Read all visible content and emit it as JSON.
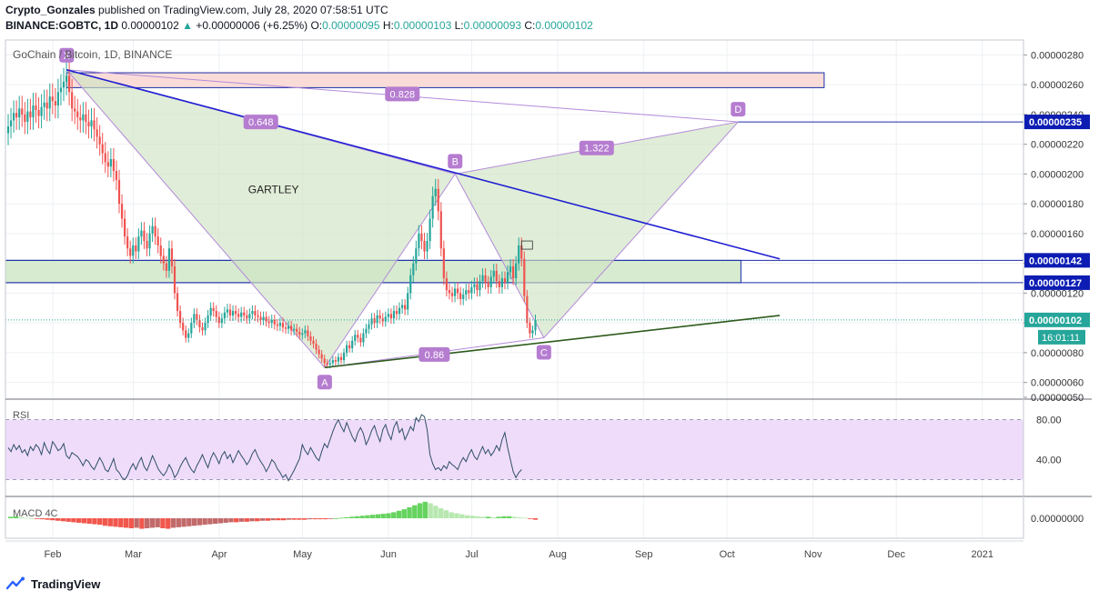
{
  "header": {
    "line1_user": "Crypto_Gonzales",
    "line1_rest": " published on TradingView.com, July 28, 2020 07:58:51 UTC",
    "symbol": "BINANCE:GOBTC, 1D",
    "price": "0.00000102",
    "change": "+0.00000006 (+6.25%)",
    "o_label": "O:",
    "o": "0.00000095",
    "h_label": "H:",
    "h": "0.00000103",
    "l_label": "L:",
    "l": "0.00000093",
    "c_label": "C:",
    "c": "0.00000102"
  },
  "colors": {
    "up": "#26a69a",
    "down": "#ef5350",
    "up_dark": "#2e7d32",
    "pattern_line": "#b38bd9",
    "pattern_fill": "#cfe3c3",
    "label_bg": "#b57cd0",
    "trend_blue": "#1f1fd1",
    "trend_green": "#2e5a1c",
    "sr_box": "#d7ebd0",
    "target_box": "#f9dcd8",
    "rsi_band": "#efdcfb",
    "rsi_line": "#2f4f66",
    "axis_label_bg": "#0d1db3",
    "price_label_bg": "#26a69a"
  },
  "footer": {
    "brand": "TradingView",
    "icon": "tradingview-logo-icon"
  },
  "chart_data": {
    "type": "candlestick",
    "title": "GoChain / Bitcoin, 1D, BINANCE",
    "ylim": [
      5e-07,
      2.9e-06
    ],
    "yticks": [
      "0.00000280",
      "0.00000260",
      "0.00000240",
      "0.00000220",
      "0.00000200",
      "0.00000180",
      "0.00000160",
      "0.00000140",
      "0.00000120",
      "0.00000100",
      "0.00000080",
      "0.00000060",
      "0.00000050"
    ],
    "xticks": [
      "Feb",
      "Mar",
      "Apr",
      "May",
      "Jun",
      "Jul",
      "Aug",
      "Sep",
      "Oct",
      "Nov",
      "Dec",
      "2021"
    ],
    "current_price": "0.00000102",
    "countdown": "16:01:11",
    "price_labels": [
      "0.00000235",
      "0.00000142",
      "0.00000127"
    ],
    "harmonic_pattern": {
      "name": "GARTLEY",
      "points": [
        {
          "label": "X",
          "date": "2020-02-06",
          "price": 2.7e-06
        },
        {
          "label": "A",
          "date": "2020-05-09",
          "price": 7e-07
        },
        {
          "label": "B",
          "date": "2020-06-25",
          "price": 2e-06
        },
        {
          "label": "C",
          "date": "2020-07-27",
          "price": 9e-07
        },
        {
          "label": "D",
          "date": "2020-10-05",
          "price": 2.35e-06
        }
      ],
      "ratios": [
        "0.648",
        "0.828",
        "1.322",
        "0.86"
      ]
    },
    "trendlines": [
      {
        "name": "resistance",
        "from": {
          "date": "2020-02-06",
          "price": 2.7e-06
        },
        "to": {
          "date": "2020-10-20",
          "price": 1.43e-06
        }
      },
      {
        "name": "support",
        "from": {
          "date": "2020-05-09",
          "price": 7e-07
        },
        "to": {
          "date": "2020-10-20",
          "price": 1.05e-06
        }
      }
    ],
    "zones": [
      {
        "name": "target-zone",
        "from": "2020-02-06",
        "to": "2020-11-05",
        "top": 2.68e-06,
        "bottom": 2.58e-06
      },
      {
        "name": "support-zone",
        "from": "2020-01-01",
        "to": "2020-10-06",
        "top": 1.42e-06,
        "bottom": 1.27e-06
      }
    ],
    "candles_close": [
      2.32e-06,
      2.36e-06,
      2.41e-06,
      2.38e-06,
      2.44e-06,
      2.4e-06,
      2.35e-06,
      2.42e-06,
      2.38e-06,
      2.46e-06,
      2.43e-06,
      2.39e-06,
      2.45e-06,
      2.48e-06,
      2.44e-06,
      2.52e-06,
      2.49e-06,
      2.46e-06,
      2.55e-06,
      2.58e-06,
      2.62e-06,
      2.66e-06,
      2.55e-06,
      2.44e-06,
      2.42e-06,
      2.38e-06,
      2.36e-06,
      2.4e-06,
      2.35e-06,
      2.32e-06,
      2.36e-06,
      2.3e-06,
      2.25e-06,
      2.2e-06,
      2.14e-06,
      2.08e-06,
      2.05e-06,
      2.1e-06,
      2.02e-06,
      1.96e-06,
      1.8e-06,
      1.7e-06,
      1.58e-06,
      1.5e-06,
      1.45e-06,
      1.52e-06,
      1.48e-06,
      1.58e-06,
      1.62e-06,
      1.55e-06,
      1.5e-06,
      1.6e-06,
      1.65e-06,
      1.58e-06,
      1.52e-06,
      1.45e-06,
      1.4e-06,
      1.35e-06,
      1.5e-06,
      1.38e-06,
      1.2e-06,
      1.08e-06,
      1e-06,
      9.5e-07,
      9e-07,
      9.3e-07,
      1e-06,
      1.06e-06,
      1.02e-06,
      9.7e-07,
      9.5e-07,
      1e-06,
      1.05e-06,
      1.1e-06,
      1.08e-06,
      1.04e-06,
      1e-06,
      1.03e-06,
      1.07e-06,
      1.09e-06,
      1.05e-06,
      1.08e-06,
      1.06e-06,
      1.04e-06,
      1.07e-06,
      1.05e-06,
      1.03e-06,
      1.06e-06,
      1.08e-06,
      1.05e-06,
      1.04e-06,
      1.02e-06,
      1.04e-06,
      1.01e-06,
      1e-06,
      1.02e-06,
      9.9e-07,
      9.8e-07,
      1e-06,
      9.7e-07,
      9.6e-07,
      9.8e-07,
      9.5e-07,
      9.6e-07,
      9.4e-07,
      9.2e-07,
      9.3e-07,
      9.5e-07,
      9.1e-07,
      8.8e-07,
      8.6e-07,
      8.2e-07,
      7.9e-07,
      7.6e-07,
      7.3e-07,
      7.2e-07,
      7.3e-07,
      7.5e-07,
      7.4e-07,
      7.7e-07,
      7.5e-07,
      8e-07,
      8.5e-07,
      8.3e-07,
      8.8e-07,
      9.2e-07,
      9e-07,
      8.7e-07,
      9.3e-07,
      9.6e-07,
      9.9e-07,
      1.03e-06,
      1e-06,
      1.05e-06,
      1.03e-06,
      1.01e-06,
      1.04e-06,
      1.06e-06,
      1.03e-06,
      1.08e-06,
      1.06e-06,
      1.1e-06,
      1.12e-06,
      1.09e-06,
      1.2e-06,
      1.32e-06,
      1.4e-06,
      1.5e-06,
      1.6e-06,
      1.55e-06,
      1.48e-06,
      1.55e-06,
      1.7e-06,
      1.85e-06,
      1.9e-06,
      1.75e-06,
      1.5e-06,
      1.3e-06,
      1.22e-06,
      1.2e-06,
      1.18e-06,
      1.23e-06,
      1.2e-06,
      1.16e-06,
      1.19e-06,
      1.22e-06,
      1.2e-06,
      1.24e-06,
      1.26e-06,
      1.22e-06,
      1.28e-06,
      1.32e-06,
      1.27e-06,
      1.24e-06,
      1.31e-06,
      1.35e-06,
      1.28e-06,
      1.24e-06,
      1.3e-06,
      1.27e-06,
      1.34e-06,
      1.38e-06,
      1.3e-06,
      1.4e-06,
      1.52e-06,
      1.43e-06,
      1.18e-06,
      1e-06,
      9.3e-07,
      9.5e-07,
      1.02e-06
    ],
    "rsi": {
      "label": "RSI",
      "levels": [
        80,
        20
      ],
      "ticks": [
        "80.00",
        "40.00"
      ],
      "values": [
        52,
        48,
        55,
        50,
        54,
        47,
        50,
        44,
        53,
        49,
        55,
        52,
        45,
        57,
        50,
        46,
        58,
        54,
        49,
        51,
        56,
        44,
        41,
        47,
        45,
        43,
        39,
        34,
        40,
        38,
        33,
        30,
        36,
        42,
        37,
        30,
        28,
        34,
        41,
        30,
        27,
        22,
        20,
        24,
        31,
        36,
        30,
        37,
        42,
        33,
        29,
        36,
        44,
        38,
        31,
        27,
        24,
        28,
        35,
        30,
        22,
        26,
        33,
        38,
        42,
        35,
        30,
        27,
        34,
        39,
        45,
        38,
        32,
        41,
        47,
        42,
        36,
        44,
        48,
        41,
        45,
        37,
        43,
        49,
        44,
        40,
        35,
        39,
        46,
        50,
        43,
        38,
        34,
        28,
        33,
        40,
        37,
        31,
        27,
        22,
        25,
        19,
        24,
        29,
        35,
        41,
        55,
        49,
        45,
        52,
        47,
        42,
        39,
        48,
        56,
        52,
        60,
        68,
        75,
        80,
        73,
        68,
        77,
        70,
        63,
        58,
        67,
        72,
        66,
        55,
        61,
        69,
        74,
        65,
        58,
        70,
        75,
        66,
        60,
        72,
        78,
        67,
        71,
        60,
        66,
        73,
        69,
        82,
        78,
        85,
        83,
        70,
        45,
        36,
        30,
        32,
        29,
        34,
        31,
        38,
        35,
        33,
        30,
        37,
        42,
        38,
        45,
        50,
        43,
        40,
        47,
        53,
        46,
        50,
        44,
        48,
        54,
        49,
        60,
        67,
        52,
        40,
        28,
        22,
        27,
        30
      ],
      "last": 30
    },
    "macd": {
      "label": "MACD 4C",
      "ticks": [
        "0.00000000"
      ],
      "histogram": [
        0.3,
        0.4,
        0.2,
        0.1,
        0.0,
        -0.1,
        -0.2,
        -0.3,
        -0.4,
        -0.5,
        -0.6,
        -0.7,
        -0.8,
        -0.9,
        -1.0,
        -1.1,
        -1.2,
        -1.3,
        -1.5,
        -1.6,
        -1.7,
        -1.8,
        -1.9,
        -2.0,
        -1.9,
        -2.1,
        -2.0,
        -1.9,
        -1.8,
        -2.0,
        -2.1,
        -1.9,
        -1.8,
        -1.7,
        -1.6,
        -1.5,
        -1.4,
        -1.3,
        -1.2,
        -1.1,
        -1.0,
        -0.9,
        -0.8,
        -0.8,
        -0.7,
        -0.7,
        -0.6,
        -0.6,
        -0.5,
        -0.5,
        -0.4,
        -0.4,
        -0.4,
        -0.3,
        -0.3,
        -0.3,
        -0.3,
        -0.2,
        -0.2,
        -0.2,
        -0.2,
        -0.1,
        0.0,
        0.1,
        0.2,
        0.3,
        0.4,
        0.5,
        0.6,
        0.7,
        0.8,
        0.9,
        1.0,
        1.2,
        1.5,
        1.8,
        2.2,
        2.6,
        3.0,
        3.3,
        3.0,
        2.5,
        2.0,
        1.6,
        1.2,
        1.0,
        0.8,
        0.6,
        0.5,
        0.4,
        0.3,
        0.3,
        0.2,
        0.3,
        0.4,
        0.4,
        0.3,
        0.2,
        0.1,
        -0.1,
        -0.3
      ]
    }
  }
}
